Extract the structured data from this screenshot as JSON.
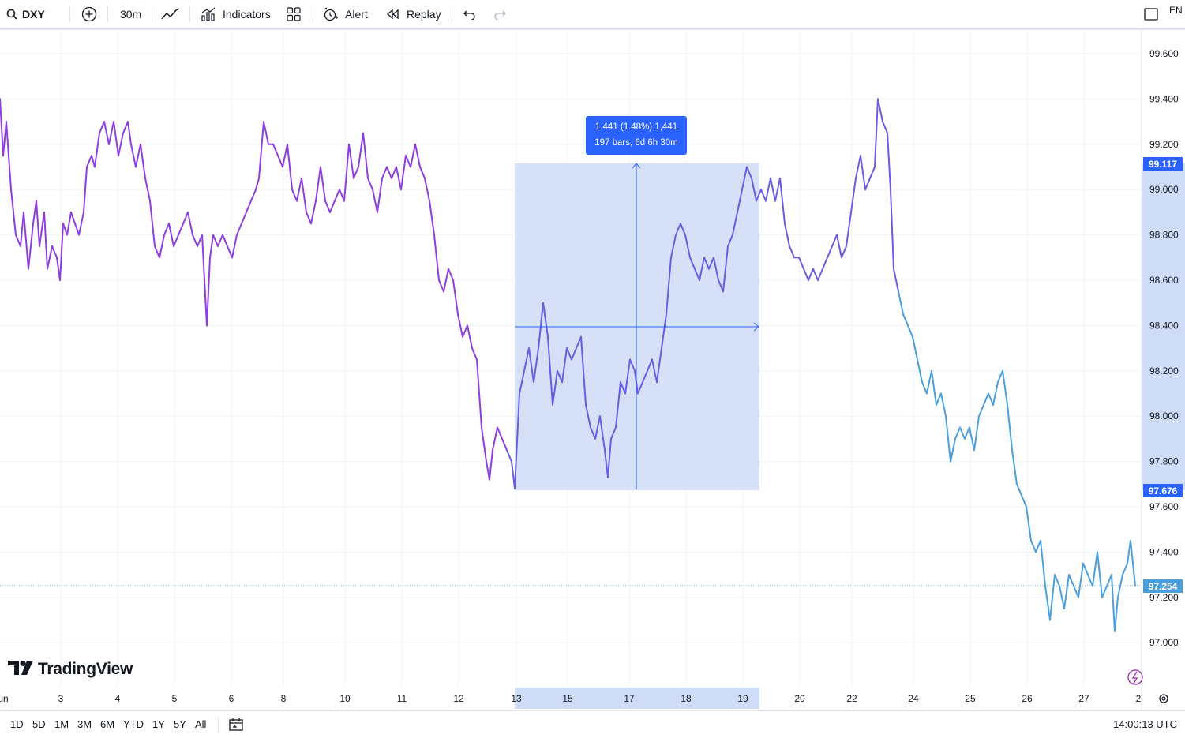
{
  "toolbar": {
    "symbol": "DXY",
    "interval": "30m",
    "indicators_label": "Indicators",
    "alert_label": "Alert",
    "replay_label": "Replay",
    "language_cut": "EN"
  },
  "colors": {
    "line_purple": "#8e3ee0",
    "line_indigo": "#6a5be3",
    "line_blue": "#4a9fdc",
    "measure_fill": "#cfdcf7",
    "measure_accent": "#2962ff",
    "last_price": "#4a9fdc"
  },
  "measure": {
    "line1": "1.441 (1.48%) 1,441",
    "line2": "197 bars, 6d 6h 30m"
  },
  "price_axis": {
    "ticks": [
      "99.600",
      "99.400",
      "99.200",
      "99.000",
      "98.800",
      "98.600",
      "98.400",
      "98.200",
      "98.000",
      "97.800",
      "97.600",
      "97.400",
      "97.200",
      "97.000"
    ],
    "high_tag": "99.117",
    "low_tag": "97.676",
    "last_tag": "97.254"
  },
  "time_axis": {
    "ticks": [
      "un",
      "3",
      "4",
      "5",
      "6",
      "8",
      "10",
      "11",
      "12",
      "13",
      "15",
      "17",
      "18",
      "19",
      "20",
      "22",
      "24",
      "25",
      "26",
      "27",
      "2"
    ]
  },
  "brand": "TradingView",
  "bottom": {
    "ranges": [
      "1D",
      "5D",
      "1M",
      "3M",
      "6M",
      "YTD",
      "1Y",
      "5Y",
      "All"
    ],
    "clock": "14:00:13 UTC"
  },
  "chart_data": {
    "type": "line",
    "symbol": "DXY",
    "interval": "30m",
    "x_dates": [
      "un",
      "3",
      "4",
      "5",
      "6",
      "8",
      "10",
      "11",
      "12",
      "13",
      "15",
      "17",
      "18",
      "19",
      "20",
      "22",
      "24",
      "25",
      "26",
      "27",
      "2"
    ],
    "ylim": [
      96.92,
      99.68
    ],
    "points": [
      [
        0,
        99.4
      ],
      [
        4,
        99.15
      ],
      [
        8,
        99.3
      ],
      [
        14,
        99.0
      ],
      [
        20,
        98.8
      ],
      [
        26,
        98.75
      ],
      [
        30,
        98.9
      ],
      [
        36,
        98.65
      ],
      [
        42,
        98.85
      ],
      [
        46,
        98.95
      ],
      [
        50,
        98.75
      ],
      [
        56,
        98.9
      ],
      [
        60,
        98.65
      ],
      [
        66,
        98.75
      ],
      [
        72,
        98.7
      ],
      [
        76,
        98.6
      ],
      [
        80,
        98.85
      ],
      [
        85,
        98.8
      ],
      [
        90,
        98.9
      ],
      [
        95,
        98.85
      ],
      [
        100,
        98.8
      ],
      [
        106,
        98.9
      ],
      [
        110,
        99.1
      ],
      [
        116,
        99.15
      ],
      [
        120,
        99.1
      ],
      [
        126,
        99.25
      ],
      [
        132,
        99.3
      ],
      [
        138,
        99.2
      ],
      [
        144,
        99.3
      ],
      [
        150,
        99.15
      ],
      [
        156,
        99.25
      ],
      [
        162,
        99.3
      ],
      [
        166,
        99.2
      ],
      [
        172,
        99.1
      ],
      [
        178,
        99.2
      ],
      [
        184,
        99.05
      ],
      [
        190,
        98.95
      ],
      [
        196,
        98.75
      ],
      [
        202,
        98.7
      ],
      [
        208,
        98.8
      ],
      [
        214,
        98.85
      ],
      [
        220,
        98.75
      ],
      [
        226,
        98.8
      ],
      [
        232,
        98.85
      ],
      [
        238,
        98.9
      ],
      [
        244,
        98.8
      ],
      [
        250,
        98.75
      ],
      [
        256,
        98.8
      ],
      [
        262,
        98.4
      ],
      [
        266,
        98.7
      ],
      [
        270,
        98.8
      ],
      [
        276,
        98.75
      ],
      [
        282,
        98.8
      ],
      [
        288,
        98.75
      ],
      [
        294,
        98.7
      ],
      [
        300,
        98.8
      ],
      [
        306,
        98.85
      ],
      [
        312,
        98.9
      ],
      [
        318,
        98.95
      ],
      [
        324,
        99.0
      ],
      [
        328,
        99.05
      ],
      [
        334,
        99.3
      ],
      [
        340,
        99.2
      ],
      [
        346,
        99.2
      ],
      [
        352,
        99.15
      ],
      [
        358,
        99.1
      ],
      [
        364,
        99.2
      ],
      [
        370,
        99.0
      ],
      [
        376,
        98.95
      ],
      [
        382,
        99.05
      ],
      [
        388,
        98.9
      ],
      [
        394,
        98.85
      ],
      [
        400,
        98.95
      ],
      [
        406,
        99.1
      ],
      [
        412,
        98.95
      ],
      [
        418,
        98.9
      ],
      [
        424,
        98.95
      ],
      [
        430,
        99.0
      ],
      [
        436,
        98.95
      ],
      [
        442,
        99.2
      ],
      [
        448,
        99.05
      ],
      [
        454,
        99.1
      ],
      [
        460,
        99.25
      ],
      [
        466,
        99.05
      ],
      [
        472,
        99.0
      ],
      [
        478,
        98.9
      ],
      [
        484,
        99.05
      ],
      [
        490,
        99.1
      ],
      [
        496,
        99.05
      ],
      [
        502,
        99.1
      ],
      [
        508,
        99.0
      ],
      [
        514,
        99.15
      ],
      [
        520,
        99.1
      ],
      [
        526,
        99.2
      ],
      [
        532,
        99.1
      ],
      [
        538,
        99.05
      ],
      [
        544,
        98.95
      ],
      [
        550,
        98.8
      ],
      [
        556,
        98.6
      ],
      [
        562,
        98.55
      ],
      [
        568,
        98.65
      ],
      [
        574,
        98.6
      ],
      [
        580,
        98.45
      ],
      [
        586,
        98.35
      ],
      [
        592,
        98.4
      ],
      [
        598,
        98.3
      ],
      [
        604,
        98.25
      ],
      [
        610,
        97.95
      ],
      [
        616,
        97.8
      ],
      [
        620,
        97.72
      ],
      [
        624,
        97.85
      ],
      [
        630,
        97.95
      ],
      [
        636,
        97.9
      ],
      [
        642,
        97.85
      ],
      [
        648,
        97.8
      ],
      [
        652,
        97.68
      ],
      [
        658,
        98.1
      ],
      [
        664,
        98.2
      ],
      [
        670,
        98.3
      ],
      [
        676,
        98.15
      ],
      [
        682,
        98.3
      ],
      [
        688,
        98.5
      ],
      [
        694,
        98.35
      ],
      [
        700,
        98.05
      ],
      [
        706,
        98.2
      ],
      [
        712,
        98.15
      ],
      [
        718,
        98.3
      ],
      [
        724,
        98.25
      ],
      [
        730,
        98.3
      ],
      [
        736,
        98.35
      ],
      [
        742,
        98.05
      ],
      [
        748,
        97.95
      ],
      [
        754,
        97.9
      ],
      [
        760,
        98.0
      ],
      [
        766,
        97.85
      ],
      [
        770,
        97.73
      ],
      [
        774,
        97.9
      ],
      [
        780,
        97.95
      ],
      [
        786,
        98.15
      ],
      [
        792,
        98.1
      ],
      [
        798,
        98.25
      ],
      [
        804,
        98.2
      ],
      [
        808,
        98.1
      ],
      [
        814,
        98.15
      ],
      [
        820,
        98.2
      ],
      [
        826,
        98.25
      ],
      [
        832,
        98.15
      ],
      [
        838,
        98.3
      ],
      [
        844,
        98.45
      ],
      [
        850,
        98.7
      ],
      [
        856,
        98.8
      ],
      [
        862,
        98.85
      ],
      [
        868,
        98.8
      ],
      [
        874,
        98.7
      ],
      [
        880,
        98.65
      ],
      [
        886,
        98.6
      ],
      [
        892,
        98.7
      ],
      [
        898,
        98.65
      ],
      [
        904,
        98.7
      ],
      [
        910,
        98.6
      ],
      [
        916,
        98.55
      ],
      [
        922,
        98.75
      ],
      [
        928,
        98.8
      ],
      [
        934,
        98.9
      ],
      [
        940,
        99.0
      ],
      [
        946,
        99.1
      ],
      [
        952,
        99.05
      ],
      [
        958,
        98.95
      ],
      [
        964,
        99.0
      ],
      [
        970,
        98.95
      ],
      [
        976,
        99.05
      ],
      [
        982,
        98.95
      ],
      [
        988,
        99.05
      ],
      [
        994,
        98.85
      ],
      [
        1000,
        98.75
      ],
      [
        1006,
        98.7
      ],
      [
        1012,
        98.7
      ],
      [
        1018,
        98.65
      ],
      [
        1024,
        98.6
      ],
      [
        1030,
        98.65
      ],
      [
        1036,
        98.6
      ],
      [
        1042,
        98.65
      ],
      [
        1048,
        98.7
      ],
      [
        1054,
        98.75
      ],
      [
        1060,
        98.8
      ],
      [
        1066,
        98.7
      ],
      [
        1072,
        98.75
      ],
      [
        1078,
        98.9
      ],
      [
        1084,
        99.05
      ],
      [
        1090,
        99.15
      ],
      [
        1096,
        99.0
      ],
      [
        1102,
        99.05
      ],
      [
        1108,
        99.1
      ],
      [
        1112,
        99.4
      ],
      [
        1118,
        99.3
      ],
      [
        1124,
        99.25
      ],
      [
        1128,
        99.0
      ],
      [
        1132,
        98.65
      ],
      [
        1138,
        98.55
      ],
      [
        1144,
        98.45
      ],
      [
        1150,
        98.4
      ],
      [
        1156,
        98.35
      ],
      [
        1162,
        98.25
      ],
      [
        1168,
        98.15
      ],
      [
        1174,
        98.1
      ],
      [
        1180,
        98.2
      ],
      [
        1186,
        98.05
      ],
      [
        1192,
        98.1
      ],
      [
        1198,
        98.0
      ],
      [
        1204,
        97.8
      ],
      [
        1210,
        97.9
      ],
      [
        1216,
        97.95
      ],
      [
        1222,
        97.9
      ],
      [
        1228,
        97.95
      ],
      [
        1234,
        97.85
      ],
      [
        1240,
        98.0
      ],
      [
        1246,
        98.05
      ],
      [
        1252,
        98.1
      ],
      [
        1258,
        98.05
      ],
      [
        1264,
        98.15
      ],
      [
        1270,
        98.2
      ],
      [
        1276,
        98.05
      ],
      [
        1282,
        97.85
      ],
      [
        1288,
        97.7
      ],
      [
        1294,
        97.65
      ],
      [
        1300,
        97.6
      ],
      [
        1306,
        97.45
      ],
      [
        1312,
        97.4
      ],
      [
        1318,
        97.45
      ],
      [
        1324,
        97.25
      ],
      [
        1330,
        97.1
      ],
      [
        1336,
        97.3
      ],
      [
        1342,
        97.25
      ],
      [
        1348,
        97.15
      ],
      [
        1354,
        97.3
      ],
      [
        1360,
        97.25
      ],
      [
        1366,
        97.2
      ],
      [
        1372,
        97.35
      ],
      [
        1378,
        97.3
      ],
      [
        1384,
        97.25
      ],
      [
        1390,
        97.4
      ],
      [
        1396,
        97.2
      ],
      [
        1402,
        97.25
      ],
      [
        1408,
        97.3
      ],
      [
        1412,
        97.05
      ],
      [
        1416,
        97.2
      ],
      [
        1422,
        97.3
      ],
      [
        1428,
        97.35
      ],
      [
        1432,
        97.45
      ],
      [
        1438,
        97.25
      ]
    ]
  }
}
